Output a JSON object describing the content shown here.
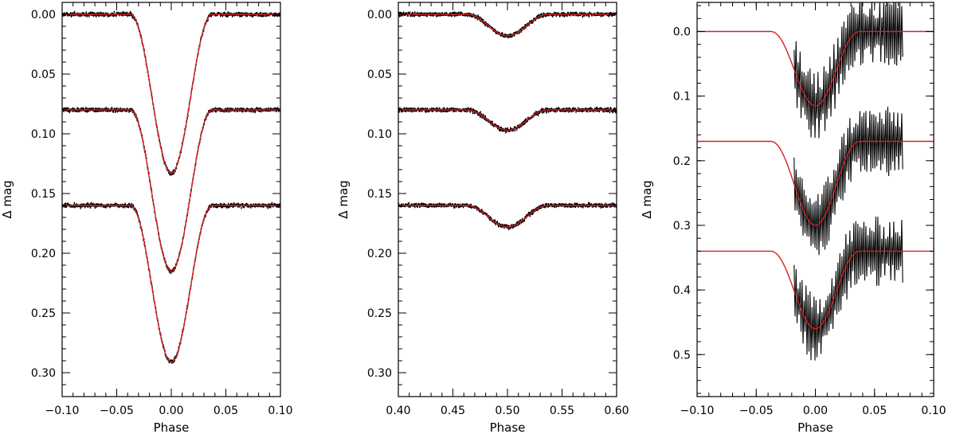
{
  "chart_data": [
    {
      "type": "line",
      "title": "",
      "xlabel": "Phase",
      "ylabel": "Δ mag",
      "xlim": [
        -0.1,
        0.1
      ],
      "ylim": [
        0.32,
        -0.01
      ],
      "y_inverted": true,
      "xticks": [
        "−0.10",
        "−0.05",
        "0.00",
        "0.05",
        "0.10"
      ],
      "xtick_values": [
        -0.1,
        -0.05,
        0.0,
        0.05,
        0.1
      ],
      "yticks": [
        "0.00",
        "0.05",
        "0.10",
        "0.15",
        "0.20",
        "0.25",
        "0.30"
      ],
      "ytick_values": [
        0.0,
        0.05,
        0.1,
        0.15,
        0.2,
        0.25,
        0.3
      ],
      "observations_color": "#000000",
      "model_color": "#d62020",
      "eclipse": {
        "center": 0.0,
        "half_width": 0.038,
        "flat_bottom_half_width": 0.0
      },
      "series": [
        {
          "baseline": 0.0,
          "depth": 0.133,
          "noise": 0.0015
        },
        {
          "baseline": 0.08,
          "depth": 0.135,
          "noise": 0.0015
        },
        {
          "baseline": 0.16,
          "depth": 0.131,
          "noise": 0.0015
        }
      ],
      "observed_x_range": [
        -0.1,
        0.1
      ]
    },
    {
      "type": "line",
      "title": "",
      "xlabel": "Phase",
      "ylabel": "Δ mag",
      "xlim": [
        0.4,
        0.6
      ],
      "ylim": [
        0.32,
        -0.01
      ],
      "y_inverted": true,
      "xticks": [
        "0.40",
        "0.45",
        "0.50",
        "0.55",
        "0.60"
      ],
      "xtick_values": [
        0.4,
        0.45,
        0.5,
        0.55,
        0.6
      ],
      "yticks": [
        "0.00",
        "0.05",
        "0.10",
        "0.15",
        "0.20",
        "0.25",
        "0.30"
      ],
      "ytick_values": [
        0.0,
        0.05,
        0.1,
        0.15,
        0.2,
        0.25,
        0.3
      ],
      "observations_color": "#000000",
      "model_color": "#d62020",
      "eclipse": {
        "center": 0.5,
        "half_width": 0.038,
        "flat_bottom_half_width": 0.0
      },
      "series": [
        {
          "baseline": 0.0,
          "depth": 0.018,
          "noise": 0.0015
        },
        {
          "baseline": 0.08,
          "depth": 0.017,
          "noise": 0.0015
        },
        {
          "baseline": 0.16,
          "depth": 0.018,
          "noise": 0.0015
        }
      ],
      "observed_x_range": [
        0.4,
        0.6
      ]
    },
    {
      "type": "line",
      "title": "",
      "xlabel": "Phase",
      "ylabel": "Δ mag",
      "xlim": [
        -0.1,
        0.1
      ],
      "ylim": [
        0.565,
        -0.045
      ],
      "y_inverted": true,
      "xticks": [
        "−0.10",
        "−0.05",
        "0.00",
        "0.05",
        "0.10"
      ],
      "xtick_values": [
        -0.1,
        -0.05,
        0.0,
        0.05,
        0.1
      ],
      "yticks": [
        "0.0",
        "0.1",
        "0.2",
        "0.3",
        "0.4",
        "0.5"
      ],
      "ytick_values": [
        0.0,
        0.1,
        0.2,
        0.3,
        0.4,
        0.5
      ],
      "observations_color": "#000000",
      "model_color": "#d62020",
      "eclipse": {
        "center": 0.0,
        "half_width": 0.038,
        "flat_bottom_half_width": 0.0
      },
      "series": [
        {
          "baseline": 0.0,
          "depth": 0.115,
          "noise": 0.03
        },
        {
          "baseline": 0.17,
          "depth": 0.13,
          "noise": 0.03
        },
        {
          "baseline": 0.34,
          "depth": 0.12,
          "noise": 0.03
        }
      ],
      "observed_x_range": [
        -0.018,
        0.073
      ]
    }
  ]
}
